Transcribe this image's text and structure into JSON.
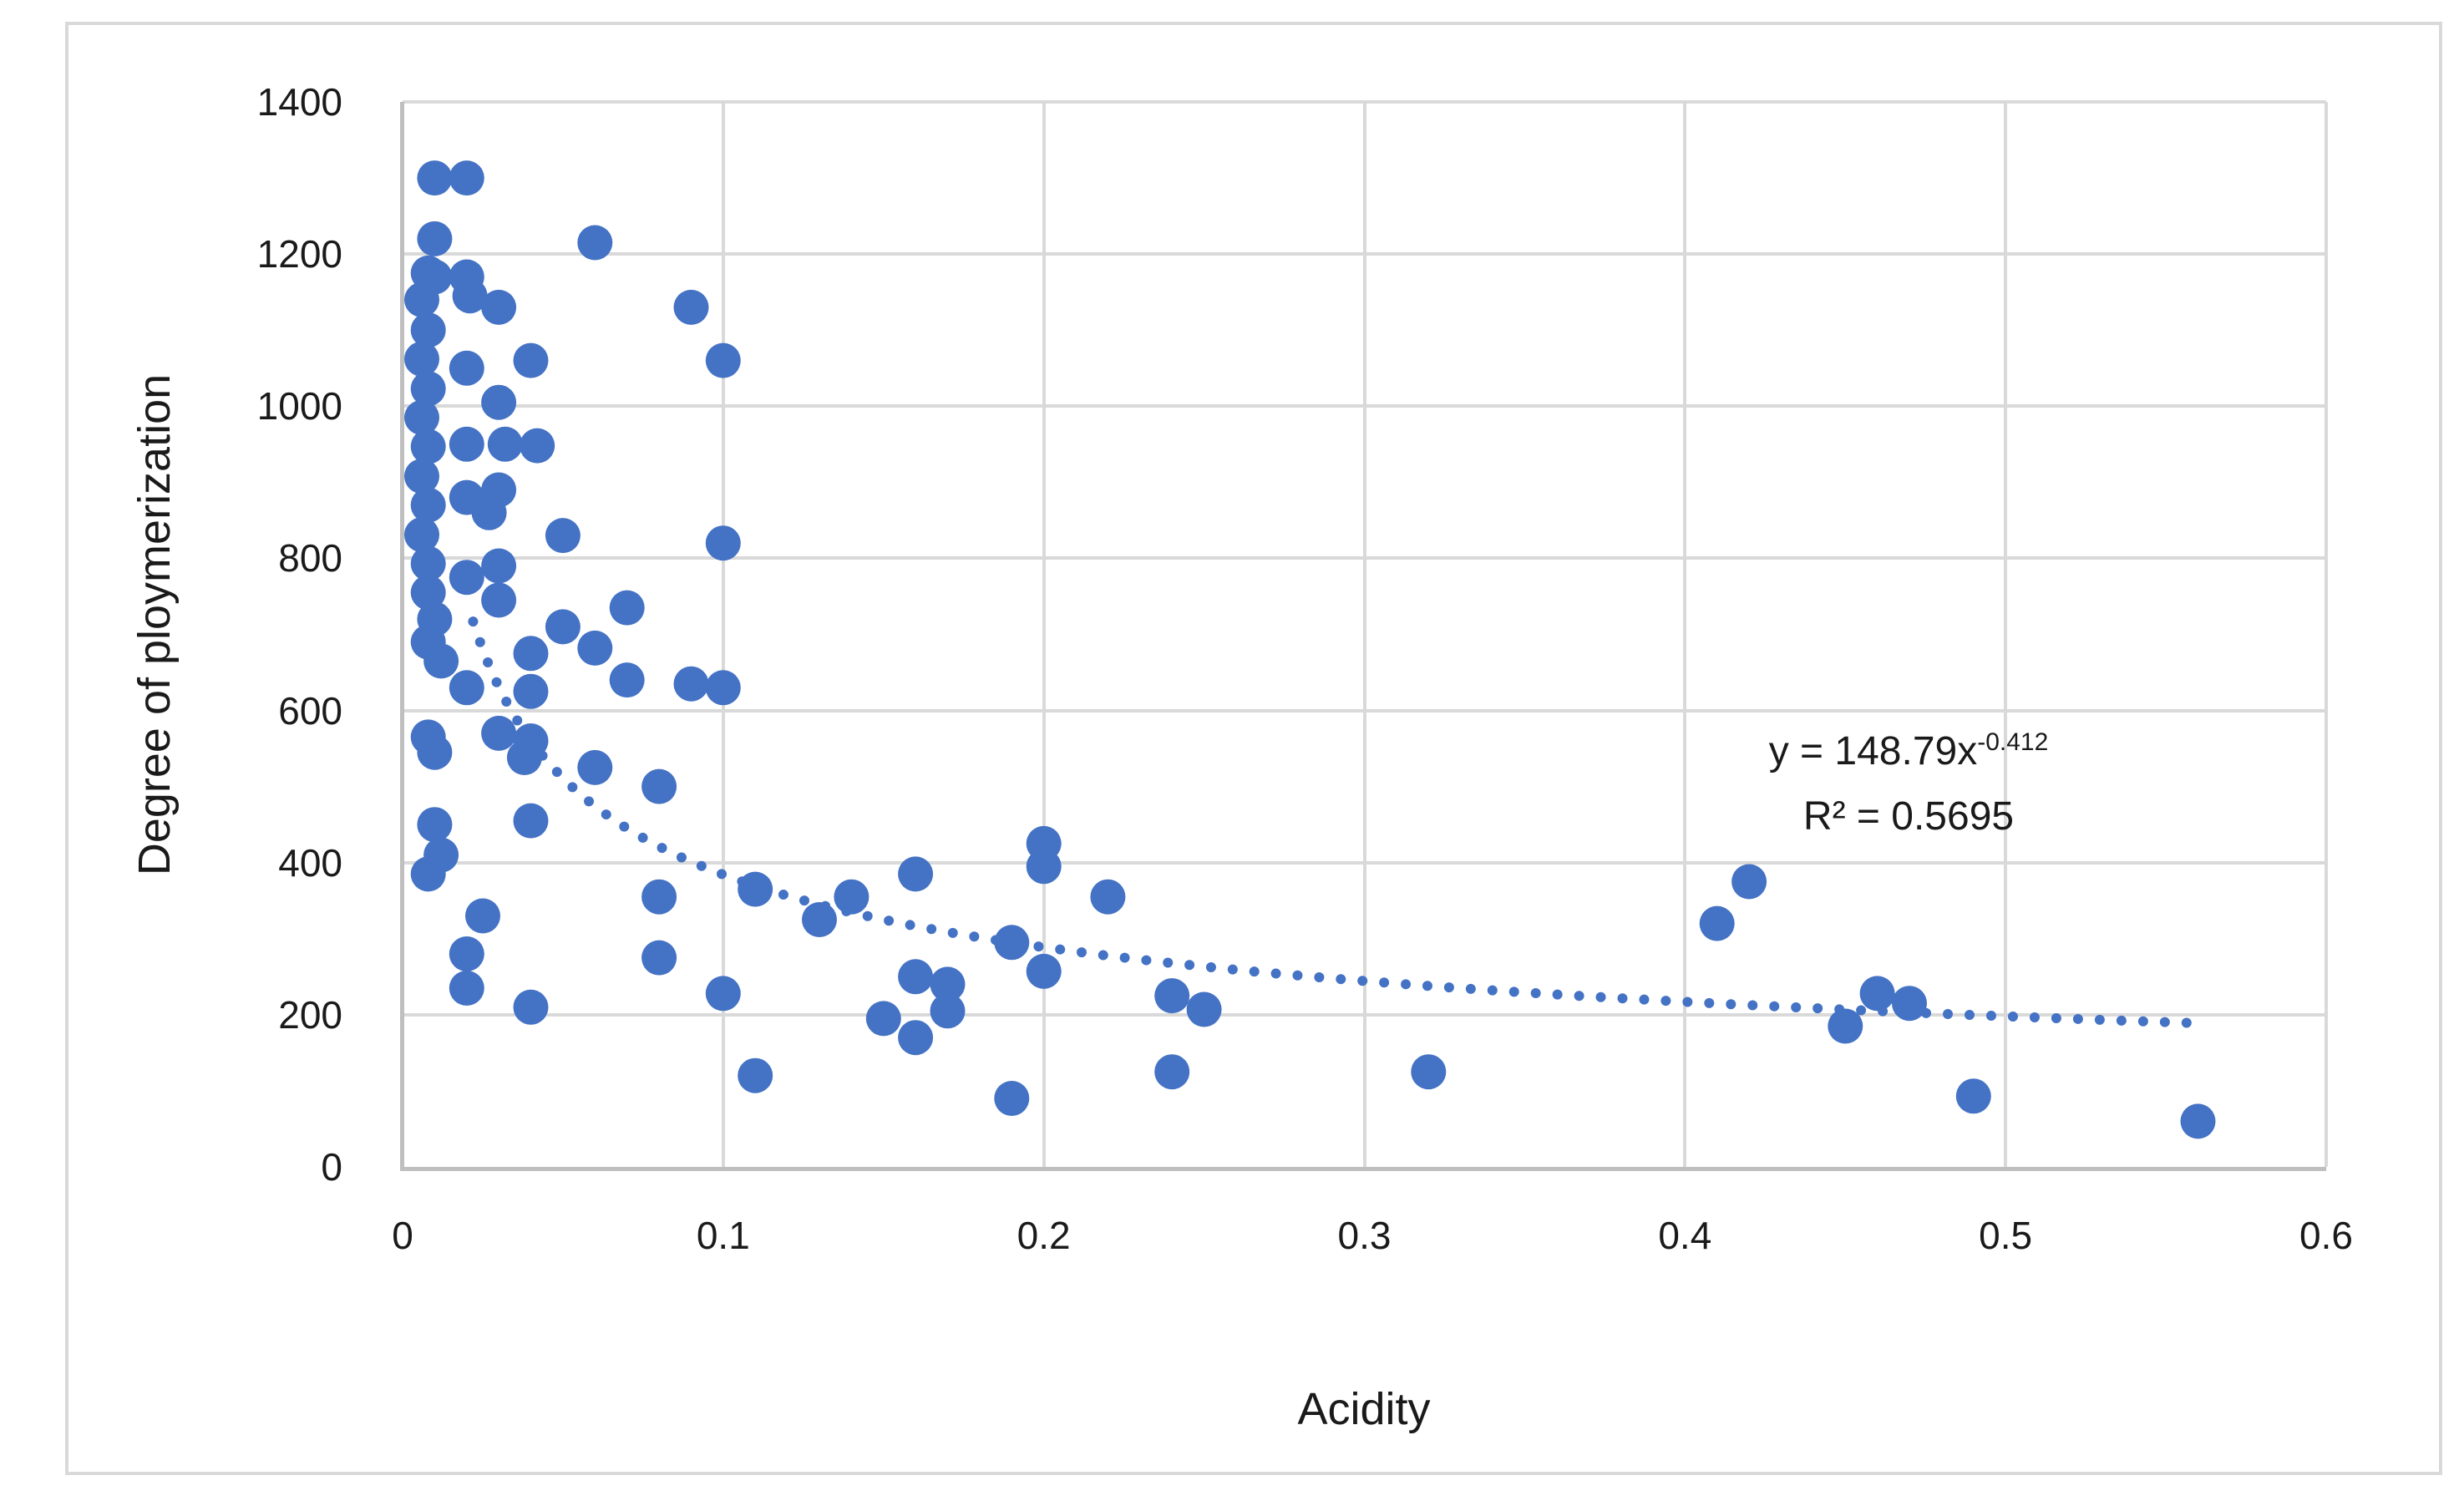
{
  "chart_data": {
    "type": "scatter",
    "title": "",
    "xlabel": "Acidity",
    "ylabel": "Degree of ploymerization",
    "xlim": [
      0,
      0.6
    ],
    "ylim": [
      0,
      1400
    ],
    "x_ticks": [
      "0",
      "0.1",
      "0.2",
      "0.3",
      "0.4",
      "0.5",
      "0.6"
    ],
    "y_ticks": [
      "0",
      "200",
      "400",
      "600",
      "800",
      "1000",
      "1200",
      "1400"
    ],
    "grid": true,
    "legend": "none",
    "marker_color": "#4472C4",
    "gridline_color": "#d9d9d9",
    "axis_line_color": "#bfbfbf",
    "text_color": "#1a1a1a",
    "points": [
      [
        0.01,
        1300
      ],
      [
        0.02,
        1300
      ],
      [
        0.01,
        1220
      ],
      [
        0.008,
        1175
      ],
      [
        0.01,
        1170
      ],
      [
        0.02,
        1170
      ],
      [
        0.021,
        1145
      ],
      [
        0.006,
        1140
      ],
      [
        0.008,
        1100
      ],
      [
        0.006,
        1062
      ],
      [
        0.008,
        1023
      ],
      [
        0.006,
        985
      ],
      [
        0.008,
        947
      ],
      [
        0.006,
        908
      ],
      [
        0.008,
        870
      ],
      [
        0.006,
        831
      ],
      [
        0.008,
        793
      ],
      [
        0.008,
        755
      ],
      [
        0.01,
        720
      ],
      [
        0.008,
        690
      ],
      [
        0.03,
        1130
      ],
      [
        0.09,
        1130
      ],
      [
        0.04,
        1060
      ],
      [
        0.1,
        1060
      ],
      [
        0.06,
        1215
      ],
      [
        0.02,
        1050
      ],
      [
        0.03,
        1005
      ],
      [
        0.027,
        860
      ],
      [
        0.02,
        950
      ],
      [
        0.032,
        950
      ],
      [
        0.042,
        948
      ],
      [
        0.02,
        880
      ],
      [
        0.03,
        890
      ],
      [
        0.02,
        775
      ],
      [
        0.03,
        790
      ],
      [
        0.03,
        745
      ],
      [
        0.05,
        830
      ],
      [
        0.1,
        820
      ],
      [
        0.05,
        710
      ],
      [
        0.06,
        682
      ],
      [
        0.07,
        735
      ],
      [
        0.012,
        665
      ],
      [
        0.02,
        630
      ],
      [
        0.04,
        675
      ],
      [
        0.04,
        625
      ],
      [
        0.07,
        640
      ],
      [
        0.09,
        635
      ],
      [
        0.1,
        630
      ],
      [
        0.008,
        565
      ],
      [
        0.01,
        545
      ],
      [
        0.03,
        570
      ],
      [
        0.04,
        560
      ],
      [
        0.038,
        538
      ],
      [
        0.06,
        525
      ],
      [
        0.08,
        500
      ],
      [
        0.04,
        455
      ],
      [
        0.01,
        450
      ],
      [
        0.012,
        410
      ],
      [
        0.008,
        385
      ],
      [
        0.025,
        330
      ],
      [
        0.02,
        280
      ],
      [
        0.02,
        235
      ],
      [
        0.04,
        210
      ],
      [
        0.08,
        355
      ],
      [
        0.08,
        275
      ],
      [
        0.1,
        228
      ],
      [
        0.11,
        365
      ],
      [
        0.11,
        120
      ],
      [
        0.13,
        325
      ],
      [
        0.14,
        355
      ],
      [
        0.16,
        385
      ],
      [
        0.2,
        425
      ],
      [
        0.2,
        395
      ],
      [
        0.2,
        257
      ],
      [
        0.19,
        295
      ],
      [
        0.19,
        90
      ],
      [
        0.22,
        355
      ],
      [
        0.16,
        250
      ],
      [
        0.17,
        240
      ],
      [
        0.17,
        205
      ],
      [
        0.15,
        195
      ],
      [
        0.16,
        170
      ],
      [
        0.24,
        225
      ],
      [
        0.25,
        207
      ],
      [
        0.24,
        125
      ],
      [
        0.32,
        125
      ],
      [
        0.41,
        320
      ],
      [
        0.42,
        375
      ],
      [
        0.45,
        185
      ],
      [
        0.46,
        228
      ],
      [
        0.47,
        215
      ],
      [
        0.49,
        93
      ],
      [
        0.56,
        60
      ]
    ],
    "marker_radius_px": 21,
    "trendline": {
      "type": "power",
      "coefficient": 148.79,
      "exponent": -0.412,
      "x_start": 0.022,
      "x_end": 0.56,
      "style": "dotted",
      "color": "#4472C4"
    },
    "annotation": {
      "equation_base": "y = 148.79x",
      "equation_exponent": "-0.412",
      "r_squared": "R² = 0.5695"
    }
  }
}
